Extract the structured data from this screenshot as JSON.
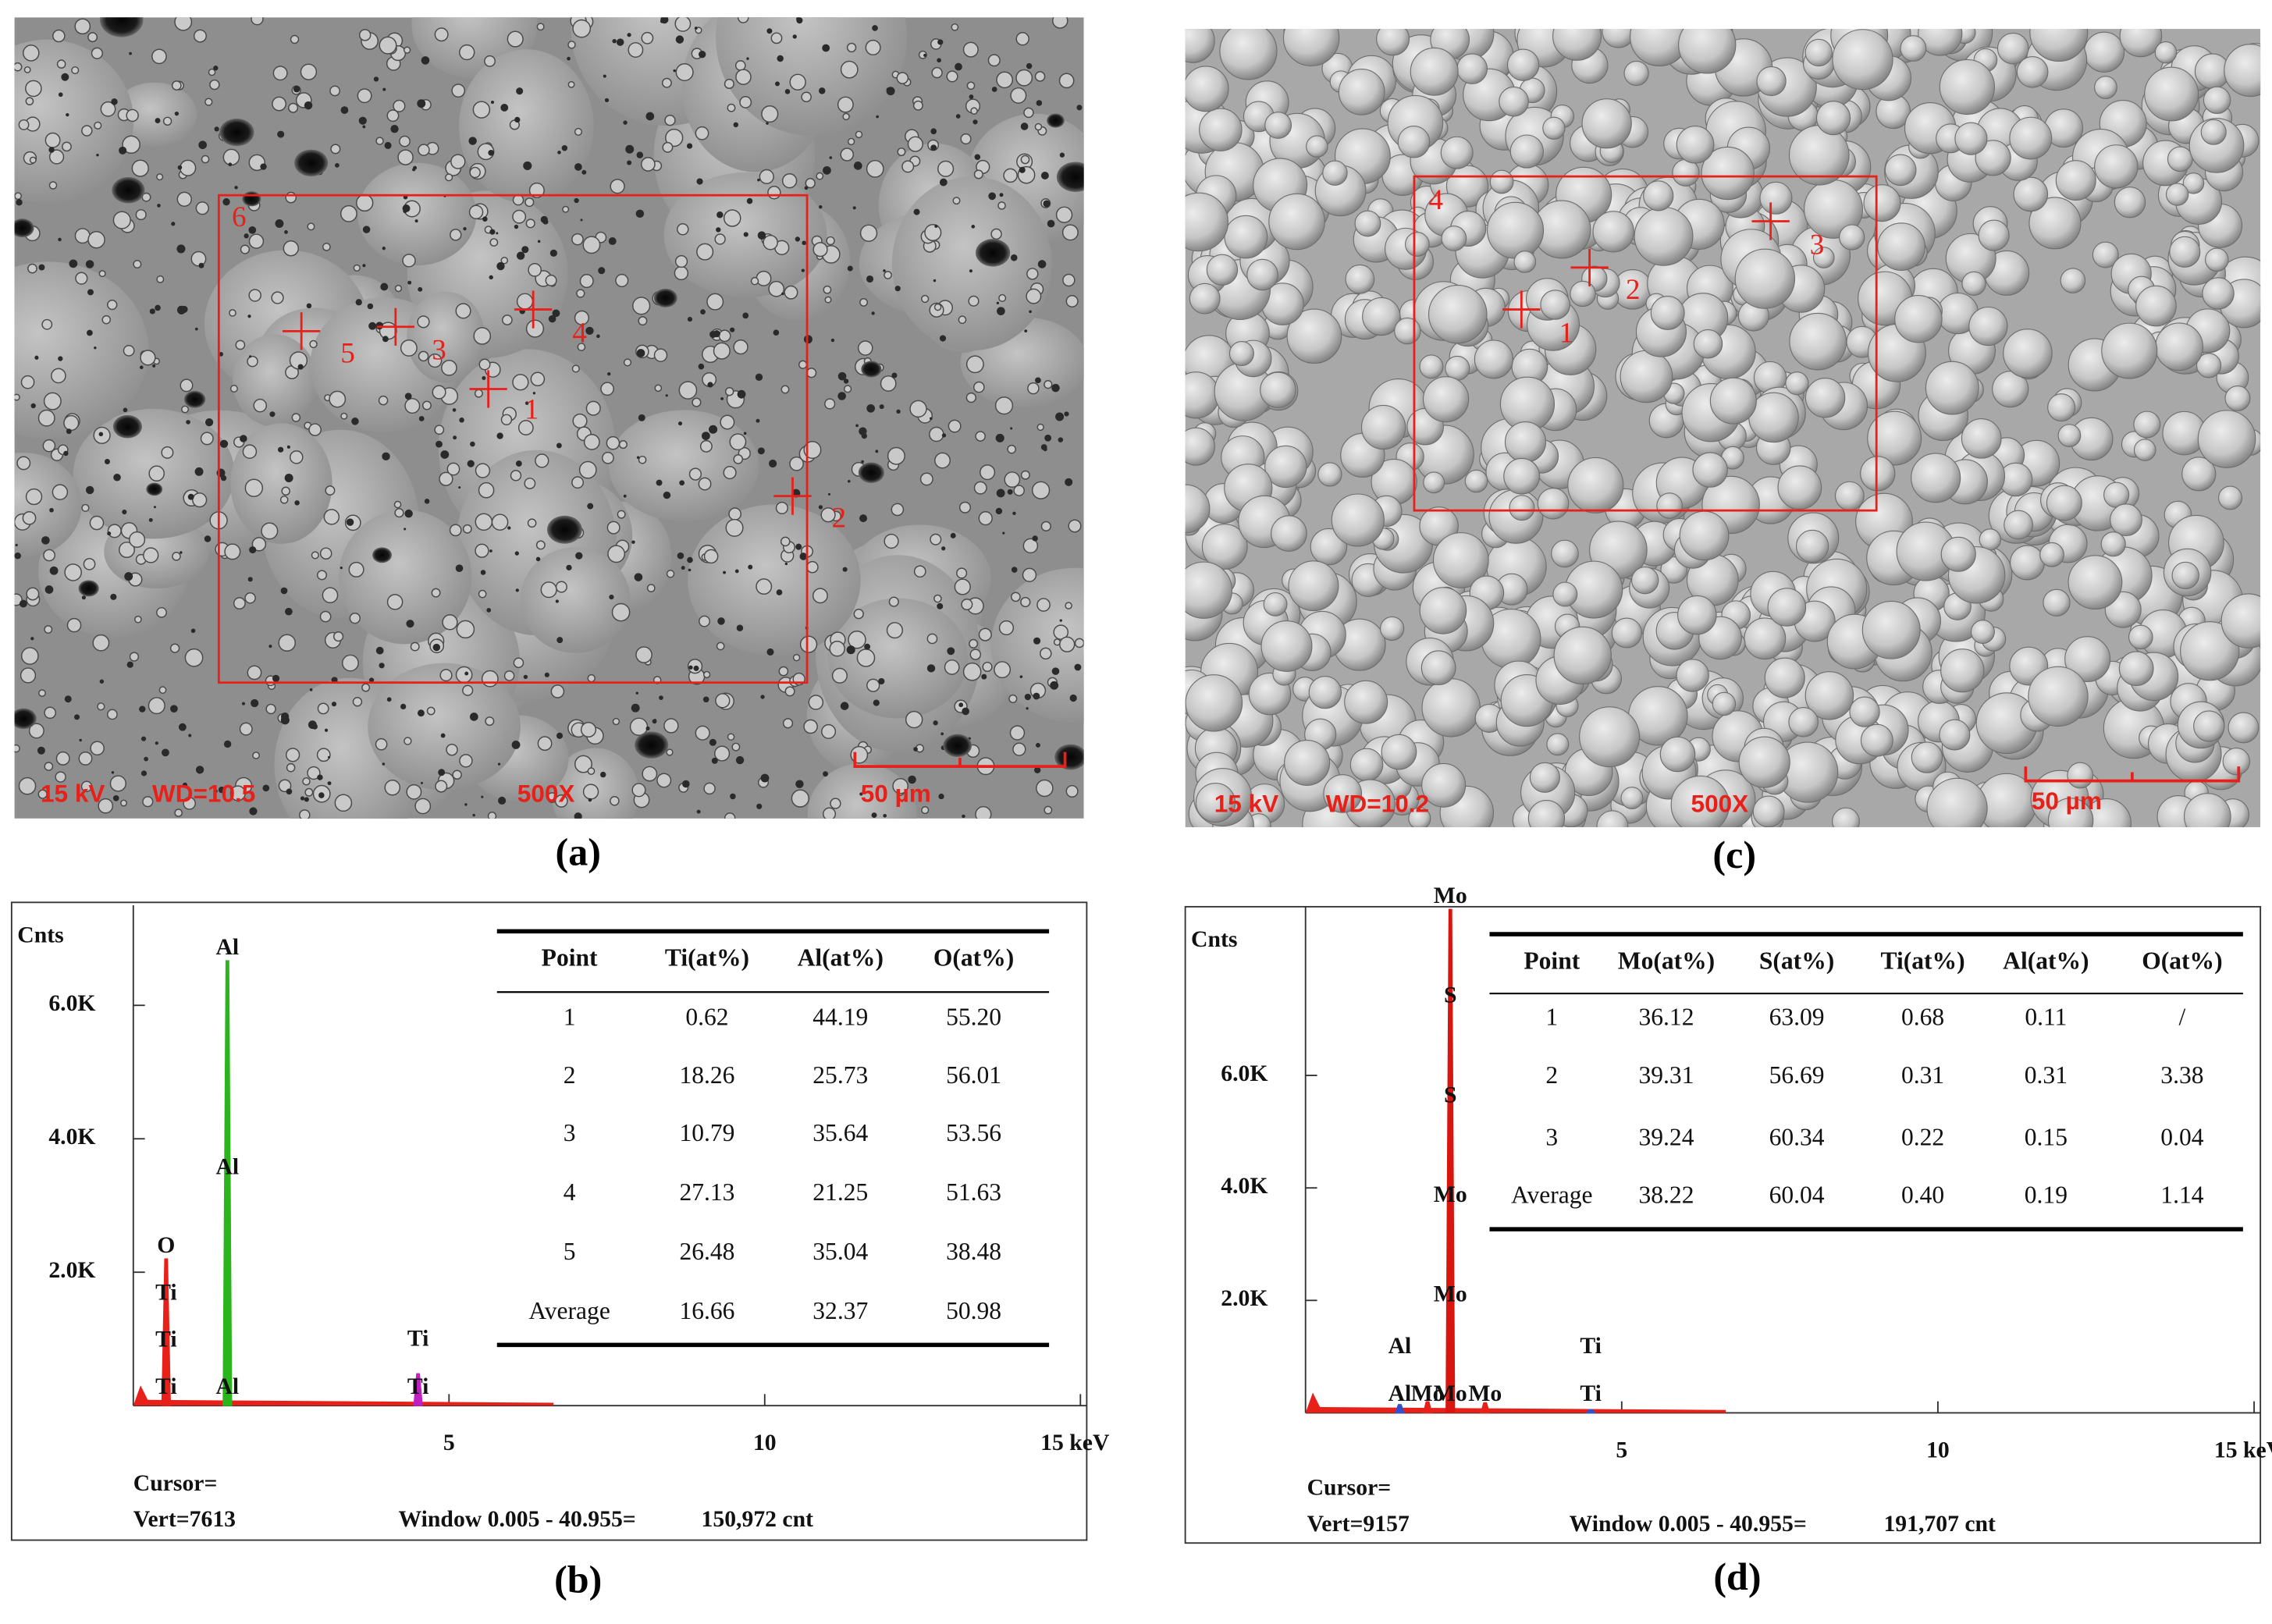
{
  "images": [
    {
      "caption": "(a)",
      "voltage": "15 kV",
      "working_distance": "WD=10.5",
      "magnification": "500X",
      "scale_bar": "50 µm",
      "points": [
        "1",
        "2",
        "3",
        "4",
        "5",
        "6"
      ]
    },
    {
      "caption": "(c)",
      "voltage": "15 kV",
      "working_distance": "WD=10.2",
      "magnification": "500X",
      "scale_bar": "50 µm",
      "points": [
        "1",
        "2",
        "3",
        "4"
      ]
    }
  ],
  "chart_data": [
    {
      "type": "spectrum",
      "caption": "(b)",
      "y_label": "Cnts",
      "xlim": [
        0,
        15.1
      ],
      "ylim": [
        0,
        7500
      ],
      "xticks": [
        5,
        10,
        {
          "value": 15,
          "label": "15 keV"
        }
      ],
      "yticks": [
        {
          "value": 2000,
          "label": "2.0K"
        },
        {
          "value": 4000,
          "label": "4.0K"
        },
        {
          "value": 6000,
          "label": "6.0K"
        }
      ],
      "peaks": [
        {
          "energy": 0.52,
          "counts": 2200,
          "color": "#e8201a",
          "labels": [
            "O",
            "Ti",
            "Ti",
            "Ti"
          ]
        },
        {
          "energy": 1.49,
          "counts": 6670,
          "color": "#2bb51d",
          "labels": [
            "Al",
            "Al",
            "Al"
          ]
        },
        {
          "energy": 4.51,
          "counts": 480,
          "color": "#c020c0",
          "labels": [
            "Ti",
            "Ti"
          ]
        }
      ],
      "cursor": "Cursor=",
      "vert": "Vert=7613",
      "window": "Window 0.005 - 40.955=",
      "total": "150,972 cnt",
      "table": {
        "columns": [
          "Point",
          "Ti(at%)",
          "Al(at%)",
          "O(at%)"
        ],
        "rows": [
          [
            "1",
            "0.62",
            "44.19",
            "55.20"
          ],
          [
            "2",
            "18.26",
            "25.73",
            "56.01"
          ],
          [
            "3",
            "10.79",
            "35.64",
            "53.56"
          ],
          [
            "4",
            "27.13",
            "21.25",
            "51.63"
          ],
          [
            "5",
            "26.48",
            "35.04",
            "38.48"
          ],
          [
            "Average",
            "16.66",
            "32.37",
            "50.98"
          ]
        ]
      }
    },
    {
      "type": "spectrum",
      "caption": "(d)",
      "y_label": "Cnts",
      "xlim": [
        0,
        15.1
      ],
      "ylim": [
        0,
        9000
      ],
      "xticks": [
        5,
        10,
        {
          "value": 15,
          "label": "15 keV"
        }
      ],
      "yticks": [
        {
          "value": 2000,
          "label": "2.0K"
        },
        {
          "value": 4000,
          "label": "4.0K"
        },
        {
          "value": 6000,
          "label": "6.0K"
        }
      ],
      "peaks": [
        {
          "energy": 1.49,
          "counts": 150,
          "color": "#3050d0",
          "labels": [
            "Al",
            "Al"
          ]
        },
        {
          "energy": 1.93,
          "counts": 200,
          "color": "#e8201a",
          "labels": [
            "Mo"
          ]
        },
        {
          "energy": 2.29,
          "counts": 8955,
          "color": "#d8150f",
          "labels": [
            "Mo",
            "S",
            "S",
            "Mo",
            "Mo",
            "Mo"
          ]
        },
        {
          "energy": 2.84,
          "counts": 180,
          "color": "#e8201a",
          "labels": [
            "Mo"
          ]
        },
        {
          "energy": 4.51,
          "counts": 60,
          "color": "#3050d0",
          "labels": [
            "Ti",
            "Ti"
          ]
        }
      ],
      "cursor": "Cursor=",
      "vert": "Vert=9157",
      "window": "Window 0.005 - 40.955=",
      "total": "191,707 cnt",
      "table": {
        "columns": [
          "Point",
          "Mo(at%)",
          "S(at%)",
          "Ti(at%)",
          "Al(at%)",
          "O(at%)"
        ],
        "rows": [
          [
            "1",
            "36.12",
            "63.09",
            "0.68",
            "0.11",
            "/"
          ],
          [
            "2",
            "39.31",
            "56.69",
            "0.31",
            "0.31",
            "3.38"
          ],
          [
            "3",
            "39.24",
            "60.34",
            "0.22",
            "0.15",
            "0.04"
          ],
          [
            "Average",
            "38.22",
            "60.04",
            "0.40",
            "0.19",
            "1.14"
          ]
        ]
      }
    }
  ]
}
